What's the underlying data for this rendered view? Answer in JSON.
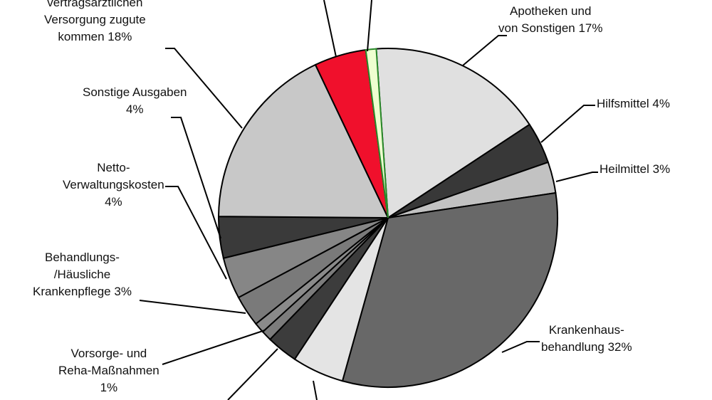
{
  "chart_data": {
    "type": "pie",
    "unit": "%",
    "slices": [
      {
        "label_lines": [
          "Apotheken und",
          "von Sonstigen 17%"
        ],
        "value": 17,
        "color": "#e0e0e0"
      },
      {
        "label_lines": [
          "Hilfsmittel 4%"
        ],
        "value": 4,
        "color": "#383838"
      },
      {
        "label_lines": [
          "Heilmittel 3%"
        ],
        "value": 3,
        "color": "#c2c2c2"
      },
      {
        "label_lines": [
          "Krankenhaus-",
          "behandlung 32%"
        ],
        "value": 32,
        "color": "#686868"
      },
      {
        "label_lines": [],
        "value": 5,
        "color": "#e4e4e4"
      },
      {
        "label_lines": [],
        "value": 3,
        "color": "#3c3c3c"
      },
      {
        "label_lines": [
          "Vorsorge- und",
          "Reha-Maßnahmen",
          "1%"
        ],
        "value": 1,
        "color": "#7c7c7c"
      },
      {
        "label_lines": [],
        "value": 1,
        "color": "#8a8a8a"
      },
      {
        "label_lines": [
          "Behandlungs-",
          "/Häusliche",
          "Krankenpflege 3%"
        ],
        "value": 3,
        "color": "#7a7a7a"
      },
      {
        "label_lines": [
          "Netto-",
          "Verwaltungskosten",
          "4%"
        ],
        "value": 4,
        "color": "#868686"
      },
      {
        "label_lines": [
          "Sonstige Ausgaben",
          "4%"
        ],
        "value": 4,
        "color": "#3a3a3a"
      },
      {
        "label_lines": [
          "vertragsärztlichen",
          "Versorgung zugute",
          "kommen 18%"
        ],
        "value": 18,
        "color": "#c8c8c8"
      },
      {
        "label_lines": [],
        "value": 5,
        "color": "#f0102c"
      },
      {
        "label_lines": [],
        "value": 1,
        "color": "#eeffd0"
      }
    ]
  }
}
